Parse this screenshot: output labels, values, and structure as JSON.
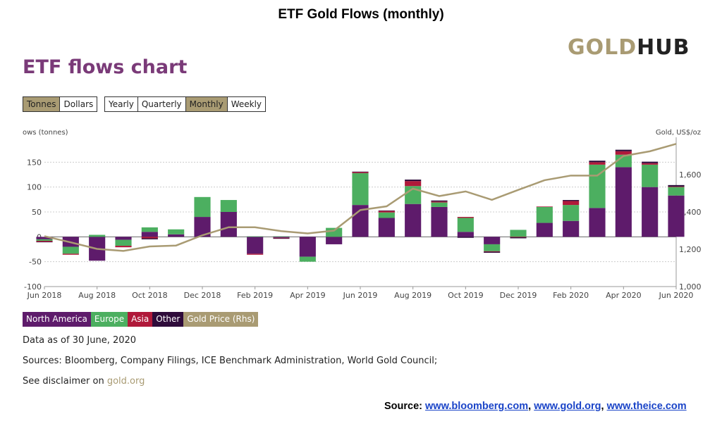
{
  "slide_title": "ETF Gold Flows (monthly)",
  "logo": {
    "part1": "GOLD",
    "part2": "HUB"
  },
  "heading": "ETF flows chart",
  "unit_toggle": [
    {
      "label": "Tonnes",
      "active": true
    },
    {
      "label": "Dollars",
      "active": false
    }
  ],
  "period_toggle": [
    {
      "label": "Yearly",
      "active": false
    },
    {
      "label": "Quarterly",
      "active": false
    },
    {
      "label": "Monthly",
      "active": true
    },
    {
      "label": "Weekly",
      "active": false
    }
  ],
  "legend": [
    {
      "label": "North America",
      "color": "#5e1b6b"
    },
    {
      "label": "Europe",
      "color": "#4caf60"
    },
    {
      "label": "Asia",
      "color": "#b0193a"
    },
    {
      "label": "Other",
      "color": "#2e0b3a"
    },
    {
      "label": "Gold Price (Rhs)",
      "color": "#a99b73"
    }
  ],
  "notes": {
    "data_as_of": "Data as of 30 June, 2020",
    "sources": "Sources: Bloomberg, Company Filings, ICE Benchmark Administration, World Gold Council;",
    "disclaimer_prefix": "See disclaimer on ",
    "disclaimer_link": "gold.org"
  },
  "source_line": {
    "label": "Source:",
    "link1": "www.bloomberg.com",
    "link2": "www.gold.org",
    "link3": "www.theice.com"
  },
  "chart_data": {
    "type": "bar",
    "stacked": true,
    "ylabel": "ows (tonnes)",
    "y2label": "Gold, US$/oz",
    "ylim": [
      -100,
      200
    ],
    "yticks": [
      -100,
      -50,
      0,
      50,
      100,
      150
    ],
    "y2lim": [
      1000,
      1800
    ],
    "y2ticks": [
      1000,
      1200,
      1400,
      1600
    ],
    "y2tick_labels": [
      "1,000",
      "1,200",
      "1,400",
      "1,600"
    ],
    "grid": true,
    "xtick_labels": [
      "Jun 2018",
      "Aug 2018",
      "Oct 2018",
      "Dec 2018",
      "Feb 2019",
      "Apr 2019",
      "Jun 2019",
      "Aug 2019",
      "Oct 2019",
      "Dec 2019",
      "Feb 2020",
      "Apr 2020",
      "Jun 2020"
    ],
    "categories": [
      "Jun 2018",
      "Jul 2018",
      "Aug 2018",
      "Sep 2018",
      "Oct 2018",
      "Nov 2018",
      "Dec 2018",
      "Jan 2019",
      "Feb 2019",
      "Mar 2019",
      "Apr 2019",
      "May 2019",
      "Jun 2019",
      "Jul 2019",
      "Aug 2019",
      "Sep 2019",
      "Oct 2019",
      "Nov 2019",
      "Dec 2019",
      "Jan 2020",
      "Feb 2020",
      "Mar 2020",
      "Apr 2020",
      "May 2020",
      "Jun 2020"
    ],
    "series": [
      {
        "name": "North America",
        "values": [
          -5,
          -20,
          -48,
          -6,
          10,
          5,
          40,
          50,
          -34,
          -2,
          -40,
          -15,
          64,
          38,
          66,
          60,
          10,
          -15,
          0,
          28,
          32,
          58,
          140,
          100,
          83
        ]
      },
      {
        "name": "Europe",
        "values": [
          -3,
          -14,
          4,
          -12,
          9,
          10,
          40,
          24,
          1,
          1,
          -10,
          18,
          64,
          11,
          36,
          9,
          28,
          -14,
          14,
          32,
          32,
          87,
          25,
          45,
          17
        ]
      },
      {
        "name": "Asia",
        "values": [
          -2,
          -2,
          0,
          -3,
          -3,
          0,
          0,
          0,
          -2,
          -1,
          0,
          0,
          2,
          3,
          10,
          2,
          2,
          -1,
          -1,
          1,
          8,
          5,
          7,
          3,
          1
        ]
      },
      {
        "name": "Other",
        "values": [
          -1,
          0,
          0,
          0,
          -2,
          0,
          0,
          0,
          0,
          -1,
          0,
          0,
          1,
          1,
          3,
          2,
          -2,
          -2,
          -2,
          0,
          2,
          3,
          3,
          3,
          3
        ]
      },
      {
        "name": "Gold Price (Rhs)",
        "type": "line",
        "values": [
          1270,
          1237,
          1202,
          1191,
          1215,
          1220,
          1275,
          1318,
          1318,
          1297,
          1285,
          1300,
          1410,
          1430,
          1525,
          1485,
          1510,
          1465,
          1518,
          1570,
          1595,
          1595,
          1700,
          1725,
          1765
        ]
      }
    ]
  }
}
